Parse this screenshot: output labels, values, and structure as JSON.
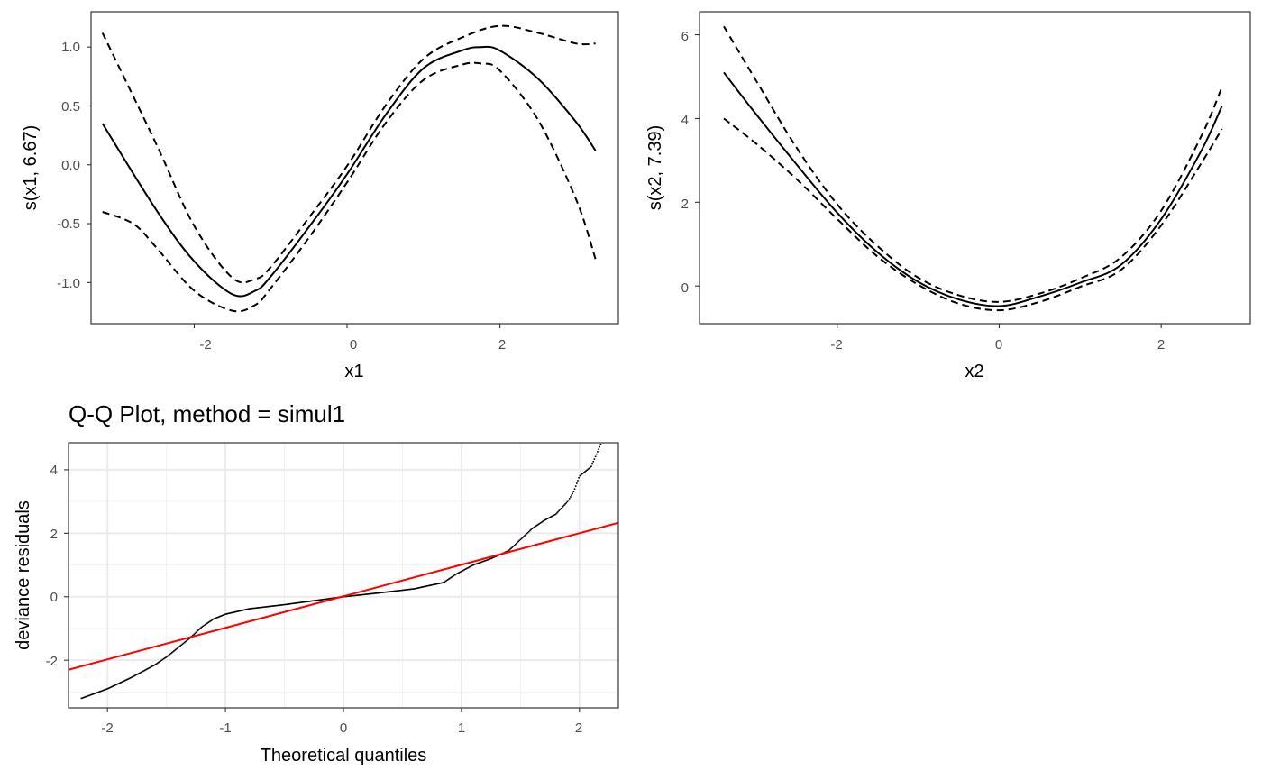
{
  "chart_data": [
    {
      "type": "line",
      "xlabel": "x1",
      "ylabel": "s(x1, 6.67)",
      "xlim": [
        -3.35,
        3.55
      ],
      "ylim": [
        -1.35,
        1.3
      ],
      "xticks": [
        -2,
        0,
        2
      ],
      "xtick_labels": [
        "-2",
        "0",
        "2"
      ],
      "yticks": [
        -1.0,
        -0.5,
        0.0,
        0.5,
        1.0
      ],
      "ytick_labels": [
        "-1.0",
        "-0.5",
        "0.0",
        "0.5",
        "1.0"
      ],
      "grid": false,
      "series": [
        {
          "role": "fit",
          "style": "solid",
          "x": [
            -3.2,
            -2.5,
            -2.0,
            -1.5,
            -1.2,
            -1.0,
            -0.5,
            0.0,
            0.5,
            1.0,
            1.5,
            1.75,
            2.0,
            2.5,
            3.0,
            3.25
          ],
          "y": [
            0.35,
            -0.38,
            -0.82,
            -1.1,
            -1.07,
            -0.95,
            -0.53,
            -0.08,
            0.42,
            0.82,
            0.97,
            1.0,
            0.97,
            0.73,
            0.36,
            0.12
          ]
        },
        {
          "role": "upper",
          "style": "dashed",
          "x": [
            -3.2,
            -2.5,
            -2.0,
            -1.5,
            -1.2,
            -1.0,
            -0.5,
            0.0,
            0.5,
            1.0,
            1.5,
            2.0,
            2.5,
            3.0,
            3.25
          ],
          "y": [
            1.12,
            0.18,
            -0.52,
            -0.96,
            -0.97,
            -0.87,
            -0.45,
            -0.01,
            0.5,
            0.9,
            1.08,
            1.18,
            1.12,
            1.03,
            1.03
          ]
        },
        {
          "role": "lower",
          "style": "dashed",
          "x": [
            -3.2,
            -2.8,
            -2.5,
            -2.0,
            -1.5,
            -1.2,
            -1.0,
            -0.5,
            0.0,
            0.5,
            1.0,
            1.5,
            1.75,
            2.0,
            2.5,
            3.0,
            3.25
          ],
          "y": [
            -0.4,
            -0.5,
            -0.7,
            -1.07,
            -1.24,
            -1.19,
            -1.05,
            -0.62,
            -0.15,
            0.35,
            0.72,
            0.85,
            0.86,
            0.8,
            0.38,
            -0.3,
            -0.8
          ]
        }
      ]
    },
    {
      "type": "line",
      "xlabel": "x2",
      "ylabel": "s(x2, 7.39)",
      "xlim": [
        -3.7,
        3.1
      ],
      "ylim": [
        -0.9,
        6.55
      ],
      "xticks": [
        -2,
        0,
        2
      ],
      "xtick_labels": [
        "-2",
        "0",
        "2"
      ],
      "yticks": [
        0,
        2,
        4,
        6
      ],
      "ytick_labels": [
        "0",
        "2",
        "4",
        "6"
      ],
      "grid": false,
      "series": [
        {
          "role": "fit",
          "style": "solid",
          "x": [
            -3.4,
            -3.0,
            -2.5,
            -2.0,
            -1.5,
            -1.0,
            -0.5,
            0.0,
            0.5,
            1.0,
            1.5,
            2.0,
            2.5,
            2.75
          ],
          "y": [
            5.1,
            4.1,
            2.9,
            1.75,
            0.8,
            0.1,
            -0.32,
            -0.48,
            -0.25,
            0.08,
            0.5,
            1.6,
            3.25,
            4.3
          ]
        },
        {
          "role": "upper",
          "style": "dashed",
          "x": [
            -3.4,
            -3.0,
            -2.5,
            -2.0,
            -1.5,
            -1.0,
            -0.5,
            0.0,
            0.5,
            1.0,
            1.5,
            2.0,
            2.5,
            2.75
          ],
          "y": [
            6.2,
            4.9,
            3.3,
            1.95,
            0.95,
            0.2,
            -0.22,
            -0.38,
            -0.18,
            0.18,
            0.68,
            1.8,
            3.6,
            4.75
          ]
        },
        {
          "role": "lower",
          "style": "dashed",
          "x": [
            -3.4,
            -3.0,
            -2.5,
            -2.0,
            -1.5,
            -1.0,
            -0.5,
            0.0,
            0.5,
            1.0,
            1.5,
            2.0,
            2.5,
            2.75
          ],
          "y": [
            4.0,
            3.4,
            2.55,
            1.6,
            0.7,
            0.03,
            -0.42,
            -0.58,
            -0.38,
            -0.02,
            0.38,
            1.45,
            2.95,
            3.75
          ]
        }
      ]
    },
    {
      "type": "scatter",
      "title": "Q-Q Plot, method = simul1",
      "xlabel": "Theoretical quantiles",
      "ylabel": "deviance residuals",
      "xlim": [
        -2.33,
        2.33
      ],
      "ylim": [
        -3.5,
        4.85
      ],
      "xticks": [
        -2,
        -1,
        0,
        1,
        2
      ],
      "xtick_labels": [
        "-2",
        "-1",
        "0",
        "1",
        "2"
      ],
      "yticks": [
        -2,
        0,
        2,
        4
      ],
      "ytick_labels": [
        "-2",
        "0",
        "2",
        "4"
      ],
      "grid": true,
      "reference_line": {
        "color": "#ff0000",
        "x": [
          -2.33,
          2.33
        ],
        "y": [
          -2.3,
          2.33
        ]
      },
      "points_curve": {
        "x": [
          -2.22,
          -2.0,
          -1.8,
          -1.6,
          -1.5,
          -1.4,
          -1.3,
          -1.2,
          -1.1,
          -1.0,
          -0.8,
          -0.5,
          -0.2,
          0.0,
          0.3,
          0.6,
          0.85,
          0.95,
          1.1,
          1.25,
          1.4,
          1.5,
          1.6,
          1.7,
          1.8,
          1.9,
          1.95,
          2.0,
          2.1,
          2.18
        ],
        "y": [
          -3.2,
          -2.9,
          -2.55,
          -2.15,
          -1.9,
          -1.6,
          -1.3,
          -0.95,
          -0.7,
          -0.55,
          -0.38,
          -0.25,
          -0.1,
          0.0,
          0.12,
          0.25,
          0.45,
          0.7,
          1.0,
          1.2,
          1.45,
          1.8,
          2.15,
          2.4,
          2.6,
          3.0,
          3.3,
          3.8,
          4.1,
          4.8
        ]
      }
    }
  ]
}
